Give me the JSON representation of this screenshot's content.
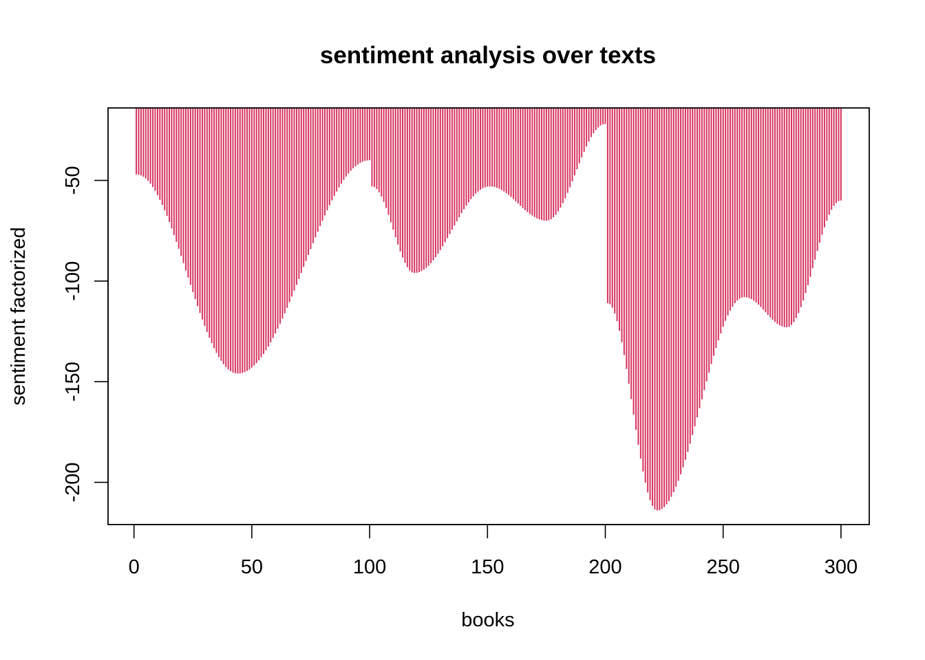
{
  "chart_data": {
    "type": "bar",
    "title": "sentiment analysis over texts",
    "xlabel": "books",
    "ylabel": "sentiment factorized",
    "xlim": [
      -11,
      312
    ],
    "ylim": [
      -221,
      -14
    ],
    "x_ticks": [
      0,
      50,
      100,
      150,
      200,
      250,
      300
    ],
    "y_ticks": [
      -50,
      -100,
      -150,
      -200
    ],
    "bar_color": "#d6335e",
    "series": [
      {
        "segments": [
          {
            "x_start": 1,
            "x_end": 100,
            "y_start": -47,
            "y_min": -146,
            "x_min": 44,
            "y_end": -40
          },
          {
            "x_start": 101,
            "x_end": 200,
            "y_start": -53,
            "y_min": -96,
            "x_min": 119,
            "y_peak": -53,
            "x_peak": 151,
            "y_min2": -70,
            "x_min2": 175,
            "y_end": -22
          },
          {
            "x_start": 201,
            "x_end": 300,
            "y_start": -111,
            "y_min": -214,
            "x_min": 222,
            "y_peak": -108,
            "x_peak": 259,
            "y_min2": -123,
            "x_min2": 277,
            "y_end": -60
          }
        ]
      }
    ]
  }
}
